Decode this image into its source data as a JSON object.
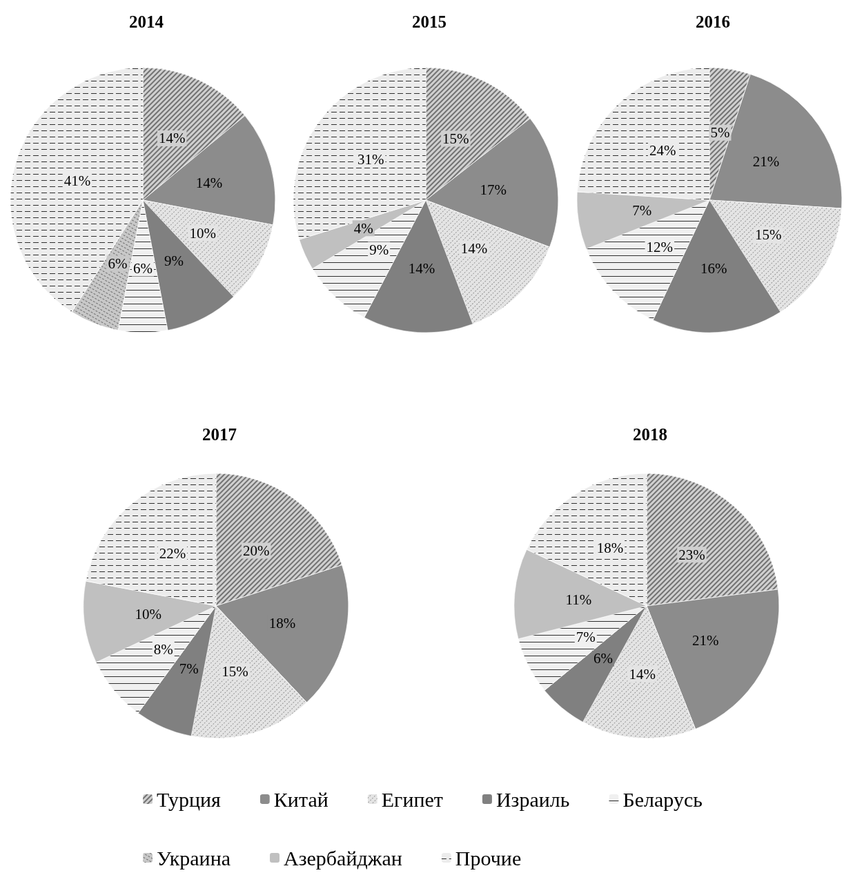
{
  "chart_data": [
    {
      "type": "pie",
      "title": "2014",
      "categories": [
        "Турция",
        "Китай",
        "Египет",
        "Израиль",
        "Беларусь",
        "Украина",
        "Азербайджан",
        "Прочие"
      ],
      "values": [
        14,
        14,
        10,
        9,
        6,
        6,
        null,
        41
      ],
      "value_labels": [
        "14%",
        "14%",
        "10%",
        "9%",
        "6%",
        "6%",
        null,
        "41%"
      ],
      "colors": [
        "#d0d0d0",
        "#8c8c8c",
        "#e4e4e4",
        "#808080",
        "#f0f0f0",
        "#c8c8c8",
        "#c0c0c0",
        "#ececec"
      ],
      "legend": "bottom"
    },
    {
      "type": "pie",
      "title": "2015",
      "categories": [
        null,
        null,
        null,
        null,
        null,
        null,
        null
      ],
      "values": [
        15,
        17,
        14,
        14,
        9,
        4,
        31
      ],
      "value_labels": [
        "15%",
        "17%",
        "14%",
        "14%",
        "9%",
        "4%",
        "31%"
      ],
      "colors": [
        "#d0d0d0",
        "#8c8c8c",
        "#e4e4e4",
        "#808080",
        "#f0f0f0",
        "#c0c0c0",
        "#ececec"
      ]
    },
    {
      "type": "pie",
      "title": "2016",
      "categories": [
        null,
        null,
        null,
        null,
        null,
        null,
        null
      ],
      "values": [
        5,
        21,
        15,
        16,
        12,
        7,
        24
      ],
      "value_labels": [
        "5%",
        "21%",
        "15%",
        "16%",
        "12%",
        "7%",
        "24%"
      ],
      "colors": [
        "#d0d0d0",
        "#8c8c8c",
        "#e4e4e4",
        "#808080",
        "#f0f0f0",
        "#c0c0c0",
        "#ececec"
      ]
    },
    {
      "type": "pie",
      "title": "2017",
      "categories": [
        null,
        null,
        null,
        null,
        null,
        null,
        null
      ],
      "values": [
        20,
        18,
        15,
        7,
        8,
        10,
        22
      ],
      "value_labels": [
        "20%",
        "18%",
        "15%",
        "7%",
        "8%",
        "10%",
        "22%"
      ],
      "colors": [
        "#d0d0d0",
        "#8c8c8c",
        "#e4e4e4",
        "#808080",
        "#f0f0f0",
        "#c0c0c0",
        "#ececec"
      ]
    },
    {
      "type": "pie",
      "title": "2018",
      "categories": [
        null,
        null,
        null,
        null,
        null,
        null,
        null
      ],
      "values": [
        23,
        21,
        14,
        6,
        7,
        11,
        18
      ],
      "value_labels": [
        "23%",
        "21%",
        "14%",
        "6%",
        "7%",
        "11%",
        "18%"
      ],
      "colors": [
        "#d0d0d0",
        "#8c8c8c",
        "#e4e4e4",
        "#808080",
        "#f0f0f0",
        "#c0c0c0",
        "#ececec"
      ]
    }
  ]
}
